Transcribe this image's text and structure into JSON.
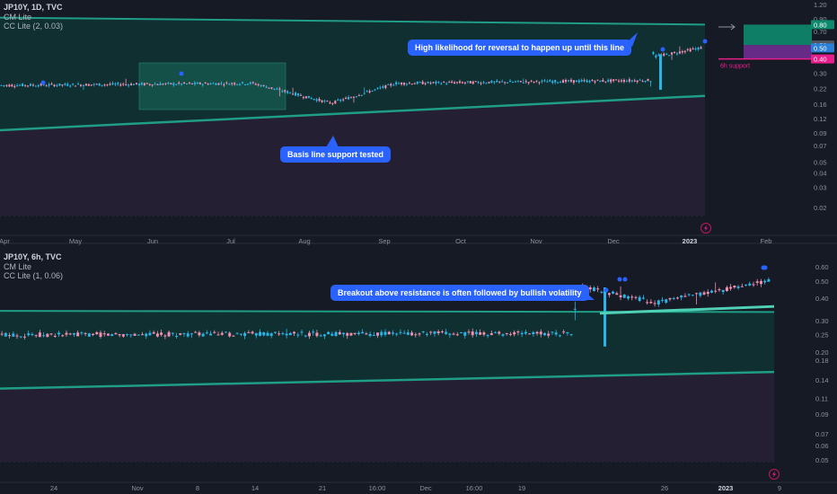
{
  "colors": {
    "background": "#161a25",
    "up_candle": "#2ab5e8",
    "down_candle": "#f48fb1",
    "band_upper_fill": "#0f2f30",
    "band_lower_fill": "#241f33",
    "channel_line": "#1f9d86",
    "breakout_line": "#4fd1b6",
    "callout": "#2962ff",
    "support_pink": "#e91e8c",
    "target_green": "#0e8a6e",
    "target_purple": "#7b2fa0",
    "signal_dot": "#2962ff",
    "axis_text": "#8d919b",
    "highlight_box": "#1c6b5c"
  },
  "icons": [
    "lightning-icon",
    "arrow-right-icon"
  ],
  "chart_data": [
    {
      "type": "candlestick",
      "symbol": "JP10Y",
      "legend": {
        "title": "JP10Y, 1D, TVC",
        "line2": "CM Lite",
        "line3": "CC Lite (2, 0.03)"
      },
      "scale": "log",
      "x_ticks": [
        "Apr",
        "May",
        "Jun",
        "Jul",
        "Aug",
        "Sep",
        "Oct",
        "Nov",
        "Dec",
        "2023",
        "Feb"
      ],
      "y_ticks": [
        "1.20",
        "0.90",
        "0.70",
        "0.53",
        "0.50",
        "0.40",
        "0.30",
        "0.22",
        "0.16",
        "0.12",
        "0.09",
        "0.07",
        "0.05",
        "0.04",
        "0.03",
        "0.02"
      ],
      "price_tags": [
        {
          "value": "0.80",
          "color": "#0e8a6e"
        },
        {
          "value": "0.53",
          "color": "#505560"
        },
        {
          "value": "0.50",
          "color": "#2a7fd6"
        },
        {
          "value": "0.40",
          "color": "#e91e8c"
        }
      ],
      "support_label": "6h support",
      "annotations": [
        "High likelihood for reversal to happen up until this line",
        "Basis line support tested"
      ],
      "channel": {
        "upper_start": 0.92,
        "upper_end": 0.8,
        "lower_start": 0.095,
        "lower_end": 0.19
      },
      "segments": [
        {
          "label": "Apr–Jul",
          "days": 95,
          "start": 0.235,
          "end": 0.245,
          "low": 0.215,
          "high": 0.27
        },
        {
          "label": "Jul–Aug dip",
          "days": 30,
          "start": 0.245,
          "end": 0.165,
          "low": 0.145,
          "high": 0.25
        },
        {
          "label": "Aug–Sep recovery",
          "days": 25,
          "start": 0.165,
          "end": 0.245,
          "low": 0.16,
          "high": 0.25
        },
        {
          "label": "Sep–Dec",
          "days": 95,
          "start": 0.245,
          "end": 0.26,
          "low": 0.235,
          "high": 0.27
        },
        {
          "label": "Dec 20 spike",
          "days": 2,
          "start": 0.26,
          "end": 0.45,
          "low": 0.21,
          "high": 0.46
        },
        {
          "label": "Dec–Jan",
          "days": 18,
          "start": 0.42,
          "end": 0.5,
          "low": 0.38,
          "high": 0.53
        }
      ]
    },
    {
      "type": "candlestick",
      "symbol": "JP10Y",
      "legend": {
        "title": "JP10Y, 6h, TVC",
        "line2": "CM Lite",
        "line3": "CC Lite (1, 0.06)"
      },
      "scale": "log",
      "x_ticks": [
        "24",
        "Nov",
        "8",
        "14",
        "21",
        "16:00",
        "Dec",
        "16:00",
        "19",
        "26",
        "2023",
        "9"
      ],
      "y_ticks": [
        "0.60",
        "0.50",
        "0.40",
        "0.30",
        "0.25",
        "0.20",
        "0.18",
        "0.14",
        "0.11",
        "0.09",
        "0.07",
        "0.06",
        "0.05"
      ],
      "annotations": [
        "Breakout above resistance is often followed by bullish volatility"
      ],
      "channel": {
        "upper_start": 0.34,
        "upper_end": 0.335,
        "lower_start": 0.125,
        "lower_end": 0.155
      },
      "breakout_line": {
        "start": 0.33,
        "end": 0.36
      },
      "segments": [
        {
          "label": "Oct–Dec range",
          "bars": 150,
          "start": 0.25,
          "end": 0.255,
          "low": 0.24,
          "high": 0.27
        },
        {
          "label": "Dec 20 spike",
          "bars": 3,
          "start": 0.255,
          "end": 0.46,
          "low": 0.21,
          "high": 0.48
        },
        {
          "label": "Late Dec",
          "bars": 20,
          "start": 0.46,
          "end": 0.38,
          "low": 0.36,
          "high": 0.55
        },
        {
          "label": "Jan",
          "bars": 30,
          "start": 0.38,
          "end": 0.5,
          "low": 0.37,
          "high": 0.6
        }
      ]
    }
  ]
}
